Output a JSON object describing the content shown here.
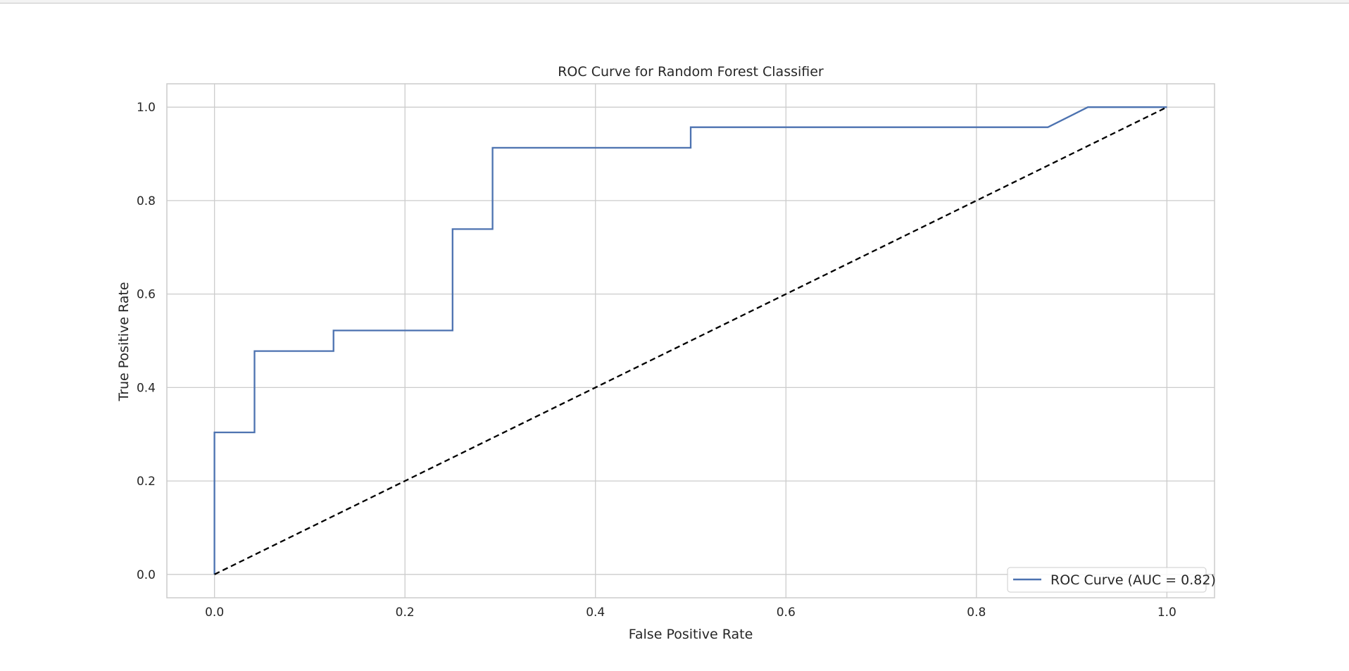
{
  "chart_data": {
    "type": "line",
    "title": "ROC Curve for Random Forest Classifier",
    "xlabel": "False Positive Rate",
    "ylabel": "True Positive Rate",
    "xlim": [
      -0.05,
      1.05
    ],
    "ylim": [
      -0.05,
      1.05
    ],
    "xticks": [
      0.0,
      0.2,
      0.4,
      0.6,
      0.8,
      1.0
    ],
    "yticks": [
      0.0,
      0.2,
      0.4,
      0.6,
      0.8,
      1.0
    ],
    "xtick_labels": [
      "0.0",
      "0.2",
      "0.4",
      "0.6",
      "0.8",
      "1.0"
    ],
    "ytick_labels": [
      "0.0",
      "0.2",
      "0.4",
      "0.6",
      "0.8",
      "1.0"
    ],
    "grid": true,
    "legend_position": "lower-right",
    "series": [
      {
        "name": "ROC Curve (AUC = 0.82)",
        "color": "#4c72b0",
        "style": "solid",
        "x": [
          0.0,
          0.0,
          0.042,
          0.042,
          0.125,
          0.125,
          0.25,
          0.25,
          0.292,
          0.292,
          0.5,
          0.5,
          0.875,
          0.917,
          1.0
        ],
        "y": [
          0.0,
          0.304,
          0.304,
          0.478,
          0.478,
          0.522,
          0.522,
          0.739,
          0.739,
          0.913,
          0.913,
          0.957,
          0.957,
          1.0,
          1.0
        ]
      },
      {
        "color": "#000000",
        "style": "dashed",
        "x": [
          0.0,
          1.0
        ],
        "y": [
          0.0,
          1.0
        ]
      }
    ]
  }
}
